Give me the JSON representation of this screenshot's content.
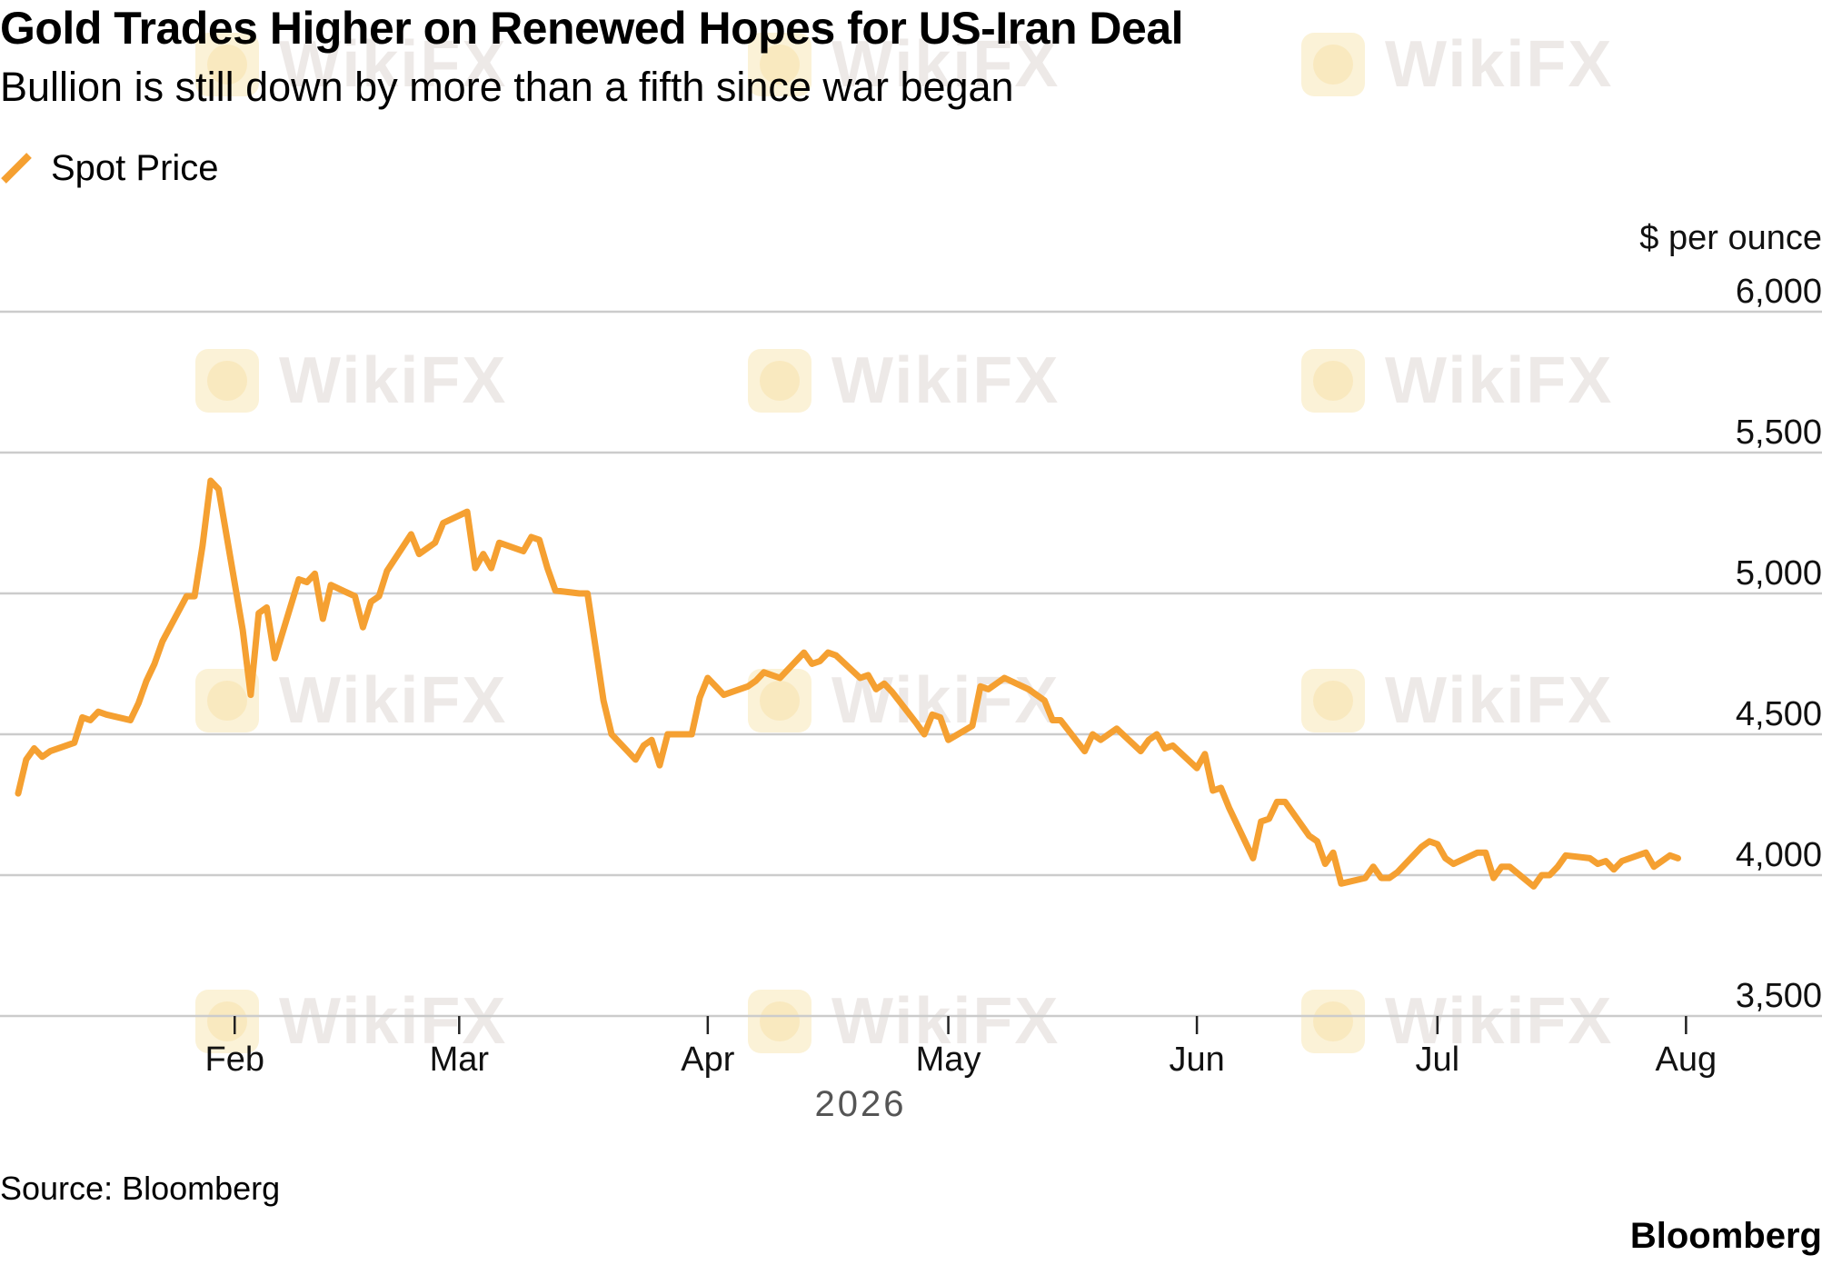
{
  "title": "Gold Trades Higher on Renewed Hopes for US-Iran Deal",
  "subtitle": "Bullion is still down by more than a fifth since war began",
  "legend": {
    "label": "Spot Price",
    "color": "#f5a031"
  },
  "source": "Source: Bloomberg",
  "brand": "Bloomberg",
  "watermark": "WikiFX",
  "colors": {
    "series": "#f5a031",
    "grid": "#cccccc",
    "axis_text": "#111111",
    "year_text": "#555555"
  },
  "chart_data": {
    "type": "line",
    "title": "Gold Trades Higher on Renewed Hopes for US-Iran Deal",
    "subtitle": "Bullion is still down by more than a fifth since war began",
    "xlabel": "2026",
    "ylabel": "$ per ounce",
    "ylim": [
      3500,
      6000
    ],
    "xlim": [
      "2026-01-05",
      "2026-08-03"
    ],
    "yticks": [
      3500,
      4000,
      4500,
      5000,
      5500,
      6000
    ],
    "ytick_labels": [
      "3,500",
      "4,000",
      "4,500",
      "5,000",
      "5,500",
      "6,000"
    ],
    "xticks": [
      {
        "date": "2026-02-01",
        "label": "Feb"
      },
      {
        "date": "2026-03-01",
        "label": "Mar"
      },
      {
        "date": "2026-04-01",
        "label": "Apr"
      },
      {
        "date": "2026-05-01",
        "label": "May"
      },
      {
        "date": "2026-06-01",
        "label": "Jun"
      },
      {
        "date": "2026-07-01",
        "label": "Jul"
      },
      {
        "date": "2026-08-01",
        "label": "Aug"
      }
    ],
    "grid": true,
    "legend_position": "top-left",
    "series": [
      {
        "name": "Spot Price",
        "color": "#f5a031",
        "points": [
          [
            "2026-01-05",
            4290
          ],
          [
            "2026-01-06",
            4410
          ],
          [
            "2026-01-07",
            4450
          ],
          [
            "2026-01-08",
            4420
          ],
          [
            "2026-01-09",
            4440
          ],
          [
            "2026-01-12",
            4470
          ],
          [
            "2026-01-13",
            4560
          ],
          [
            "2026-01-14",
            4550
          ],
          [
            "2026-01-15",
            4580
          ],
          [
            "2026-01-16",
            4570
          ],
          [
            "2026-01-19",
            4550
          ],
          [
            "2026-01-20",
            4610
          ],
          [
            "2026-01-21",
            4690
          ],
          [
            "2026-01-22",
            4750
          ],
          [
            "2026-01-23",
            4830
          ],
          [
            "2026-01-26",
            4990
          ],
          [
            "2026-01-27",
            4990
          ],
          [
            "2026-01-28",
            5170
          ],
          [
            "2026-01-29",
            5400
          ],
          [
            "2026-01-30",
            5370
          ],
          [
            "2026-02-02",
            4870
          ],
          [
            "2026-02-03",
            4640
          ],
          [
            "2026-02-04",
            4930
          ],
          [
            "2026-02-05",
            4950
          ],
          [
            "2026-02-06",
            4770
          ],
          [
            "2026-02-09",
            5050
          ],
          [
            "2026-02-10",
            5040
          ],
          [
            "2026-02-11",
            5070
          ],
          [
            "2026-02-12",
            4910
          ],
          [
            "2026-02-13",
            5030
          ],
          [
            "2026-02-16",
            4990
          ],
          [
            "2026-02-17",
            4880
          ],
          [
            "2026-02-18",
            4970
          ],
          [
            "2026-02-19",
            4990
          ],
          [
            "2026-02-20",
            5080
          ],
          [
            "2026-02-23",
            5210
          ],
          [
            "2026-02-24",
            5140
          ],
          [
            "2026-02-25",
            5160
          ],
          [
            "2026-02-26",
            5180
          ],
          [
            "2026-02-27",
            5250
          ],
          [
            "2026-03-02",
            5290
          ],
          [
            "2026-03-03",
            5090
          ],
          [
            "2026-03-04",
            5140
          ],
          [
            "2026-03-05",
            5090
          ],
          [
            "2026-03-06",
            5180
          ],
          [
            "2026-03-09",
            5150
          ],
          [
            "2026-03-10",
            5200
          ],
          [
            "2026-03-11",
            5190
          ],
          [
            "2026-03-12",
            5090
          ],
          [
            "2026-03-13",
            5010
          ],
          [
            "2026-03-16",
            5000
          ],
          [
            "2026-03-17",
            5000
          ],
          [
            "2026-03-18",
            4810
          ],
          [
            "2026-03-19",
            4620
          ],
          [
            "2026-03-20",
            4500
          ],
          [
            "2026-03-23",
            4410
          ],
          [
            "2026-03-24",
            4460
          ],
          [
            "2026-03-25",
            4480
          ],
          [
            "2026-03-26",
            4390
          ],
          [
            "2026-03-27",
            4500
          ],
          [
            "2026-03-30",
            4500
          ],
          [
            "2026-03-31",
            4630
          ],
          [
            "2026-04-01",
            4700
          ],
          [
            "2026-04-02",
            4670
          ],
          [
            "2026-04-03",
            4640
          ],
          [
            "2026-04-06",
            4670
          ],
          [
            "2026-04-07",
            4690
          ],
          [
            "2026-04-08",
            4720
          ],
          [
            "2026-04-09",
            4710
          ],
          [
            "2026-04-10",
            4700
          ],
          [
            "2026-04-13",
            4790
          ],
          [
            "2026-04-14",
            4750
          ],
          [
            "2026-04-15",
            4760
          ],
          [
            "2026-04-16",
            4790
          ],
          [
            "2026-04-17",
            4780
          ],
          [
            "2026-04-20",
            4700
          ],
          [
            "2026-04-21",
            4710
          ],
          [
            "2026-04-22",
            4660
          ],
          [
            "2026-04-23",
            4680
          ],
          [
            "2026-04-24",
            4650
          ],
          [
            "2026-04-27",
            4540
          ],
          [
            "2026-04-28",
            4500
          ],
          [
            "2026-04-29",
            4570
          ],
          [
            "2026-04-30",
            4560
          ],
          [
            "2026-05-01",
            4480
          ],
          [
            "2026-05-04",
            4530
          ],
          [
            "2026-05-05",
            4670
          ],
          [
            "2026-05-06",
            4660
          ],
          [
            "2026-05-07",
            4680
          ],
          [
            "2026-05-08",
            4700
          ],
          [
            "2026-05-11",
            4660
          ],
          [
            "2026-05-12",
            4640
          ],
          [
            "2026-05-13",
            4620
          ],
          [
            "2026-05-14",
            4550
          ],
          [
            "2026-05-15",
            4550
          ],
          [
            "2026-05-18",
            4440
          ],
          [
            "2026-05-19",
            4500
          ],
          [
            "2026-05-20",
            4480
          ],
          [
            "2026-05-21",
            4500
          ],
          [
            "2026-05-22",
            4520
          ],
          [
            "2026-05-25",
            4440
          ],
          [
            "2026-05-26",
            4480
          ],
          [
            "2026-05-27",
            4500
          ],
          [
            "2026-05-28",
            4450
          ],
          [
            "2026-05-29",
            4460
          ],
          [
            "2026-06-01",
            4380
          ],
          [
            "2026-06-02",
            4430
          ],
          [
            "2026-06-03",
            4300
          ],
          [
            "2026-06-04",
            4310
          ],
          [
            "2026-06-05",
            4240
          ],
          [
            "2026-06-08",
            4060
          ],
          [
            "2026-06-09",
            4190
          ],
          [
            "2026-06-10",
            4200
          ],
          [
            "2026-06-11",
            4260
          ],
          [
            "2026-06-12",
            4260
          ],
          [
            "2026-06-15",
            4140
          ],
          [
            "2026-06-16",
            4120
          ],
          [
            "2026-06-17",
            4040
          ],
          [
            "2026-06-18",
            4080
          ],
          [
            "2026-06-19",
            3970
          ],
          [
            "2026-06-22",
            3990
          ],
          [
            "2026-06-23",
            4030
          ],
          [
            "2026-06-24",
            3990
          ],
          [
            "2026-06-25",
            3990
          ],
          [
            "2026-06-26",
            4010
          ],
          [
            "2026-06-29",
            4100
          ],
          [
            "2026-06-30",
            4120
          ],
          [
            "2026-07-01",
            4110
          ],
          [
            "2026-07-02",
            4060
          ],
          [
            "2026-07-03",
            4040
          ],
          [
            "2026-07-06",
            4080
          ],
          [
            "2026-07-07",
            4080
          ],
          [
            "2026-07-08",
            3990
          ],
          [
            "2026-07-09",
            4030
          ],
          [
            "2026-07-10",
            4030
          ],
          [
            "2026-07-13",
            3960
          ],
          [
            "2026-07-14",
            4000
          ],
          [
            "2026-07-15",
            4000
          ],
          [
            "2026-07-16",
            4030
          ],
          [
            "2026-07-17",
            4070
          ],
          [
            "2026-07-20",
            4060
          ],
          [
            "2026-07-21",
            4040
          ],
          [
            "2026-07-22",
            4050
          ],
          [
            "2026-07-23",
            4020
          ],
          [
            "2026-07-24",
            4050
          ],
          [
            "2026-07-27",
            4080
          ],
          [
            "2026-07-28",
            4030
          ],
          [
            "2026-07-29",
            4050
          ],
          [
            "2026-07-30",
            4070
          ],
          [
            "2026-07-31",
            4060
          ]
        ]
      }
    ]
  }
}
